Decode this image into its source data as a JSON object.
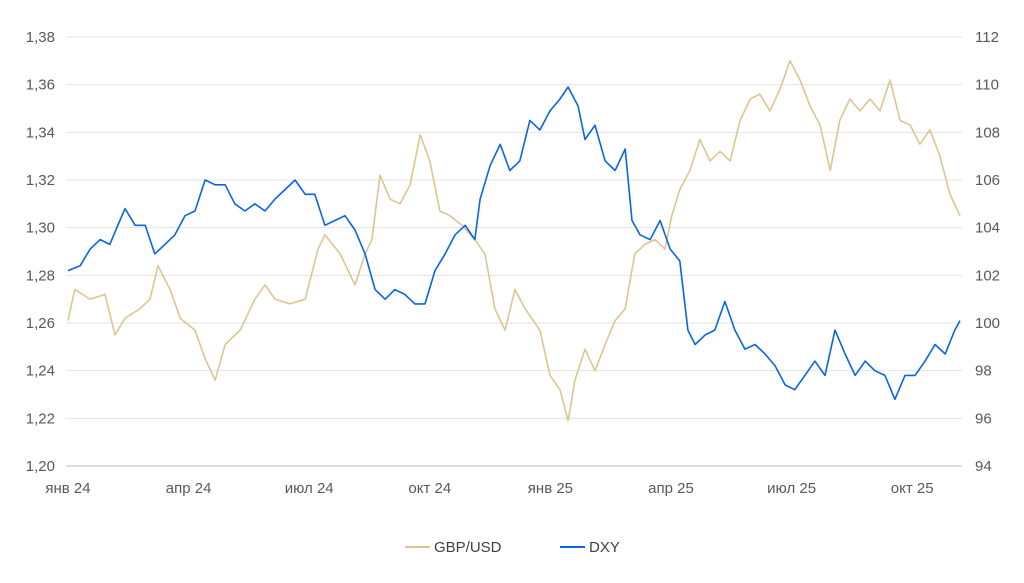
{
  "chart_data": {
    "type": "line",
    "title": "",
    "x_unit": "months since January 2024",
    "x_ticks": [
      {
        "t": 0,
        "label": "янв 24"
      },
      {
        "t": 3,
        "label": "апр 24"
      },
      {
        "t": 6,
        "label": "июл 24"
      },
      {
        "t": 9,
        "label": "окт 24"
      },
      {
        "t": 12,
        "label": "янв 25"
      },
      {
        "t": 15,
        "label": "апр 25"
      },
      {
        "t": 18,
        "label": "июл 25"
      },
      {
        "t": 21,
        "label": "окт 25"
      }
    ],
    "y_left": {
      "min": 1.2,
      "max": 1.38,
      "step": 0.02,
      "ticks": [
        "1,20",
        "1,22",
        "1,24",
        "1,26",
        "1,28",
        "1,30",
        "1,32",
        "1,34",
        "1,36",
        "1,38"
      ]
    },
    "y_right": {
      "min": 94,
      "max": 112,
      "step": 2,
      "ticks": [
        "94",
        "96",
        "98",
        "100",
        "102",
        "104",
        "106",
        "108",
        "110",
        "112"
      ]
    },
    "grid": true,
    "legend_position": "bottom",
    "series": [
      {
        "name": "GBP/USD",
        "axis": "left",
        "color": "#DCC592",
        "t": [
          0,
          0.17,
          0.55,
          0.92,
          1.17,
          1.42,
          1.79,
          2.04,
          2.24,
          2.54,
          2.79,
          3.16,
          3.41,
          3.66,
          3.91,
          4.28,
          4.65,
          4.9,
          5.15,
          5.52,
          5.9,
          6.22,
          6.39,
          6.77,
          7.14,
          7.39,
          7.56,
          7.76,
          8.01,
          8.26,
          8.51,
          8.76,
          9.0,
          9.25,
          9.5,
          9.8,
          10.12,
          10.37,
          10.62,
          10.87,
          11.12,
          11.37,
          11.74,
          11.99,
          12.24,
          12.44,
          12.61,
          12.86,
          13.11,
          13.36,
          13.61,
          13.86,
          14.1,
          14.35,
          14.6,
          14.85,
          15.02,
          15.22,
          15.47,
          15.72,
          15.97,
          16.22,
          16.47,
          16.72,
          16.97,
          17.21,
          17.46,
          17.71,
          17.96,
          18.21,
          18.46,
          18.71,
          18.96,
          19.2,
          19.45,
          19.7,
          19.95,
          20.2,
          20.45,
          20.7,
          20.95,
          21.19,
          21.44,
          21.69,
          21.94,
          22.19
        ],
        "values": [
          1.261,
          1.274,
          1.27,
          1.272,
          1.255,
          1.262,
          1.266,
          1.27,
          1.284,
          1.274,
          1.262,
          1.257,
          1.245,
          1.236,
          1.251,
          1.257,
          1.27,
          1.276,
          1.27,
          1.268,
          1.27,
          1.291,
          1.297,
          1.289,
          1.276,
          1.289,
          1.295,
          1.322,
          1.312,
          1.31,
          1.318,
          1.339,
          1.328,
          1.307,
          1.305,
          1.301,
          1.295,
          1.289,
          1.266,
          1.257,
          1.274,
          1.266,
          1.257,
          1.238,
          1.232,
          1.219,
          1.236,
          1.249,
          1.24,
          1.251,
          1.261,
          1.266,
          1.289,
          1.293,
          1.295,
          1.291,
          1.305,
          1.316,
          1.324,
          1.337,
          1.328,
          1.332,
          1.328,
          1.345,
          1.354,
          1.356,
          1.349,
          1.358,
          1.37,
          1.362,
          1.351,
          1.343,
          1.324,
          1.345,
          1.354,
          1.349,
          1.354,
          1.349,
          1.362,
          1.345,
          1.343,
          1.335,
          1.341,
          1.33,
          1.314,
          1.305
        ]
      },
      {
        "name": "DXY",
        "axis": "right",
        "color": "#0A64E6",
        "t": [
          0,
          0.3,
          0.55,
          0.8,
          1.04,
          1.24,
          1.42,
          1.67,
          1.92,
          2.16,
          2.41,
          2.66,
          2.91,
          3.16,
          3.41,
          3.66,
          3.91,
          4.15,
          4.4,
          4.65,
          4.9,
          5.15,
          5.4,
          5.65,
          5.9,
          6.14,
          6.39,
          6.64,
          6.89,
          7.14,
          7.39,
          7.64,
          7.89,
          8.13,
          8.38,
          8.63,
          8.88,
          9.13,
          9.38,
          9.63,
          9.88,
          10.12,
          10.25,
          10.5,
          10.75,
          10.99,
          11.24,
          11.49,
          11.74,
          11.99,
          12.24,
          12.44,
          12.69,
          12.86,
          13.11,
          13.36,
          13.61,
          13.86,
          14.03,
          14.23,
          14.48,
          14.73,
          14.98,
          15.22,
          15.42,
          15.6,
          15.85,
          16.09,
          16.34,
          16.59,
          16.84,
          17.09,
          17.34,
          17.59,
          17.84,
          18.08,
          18.33,
          18.58,
          18.83,
          19.08,
          19.33,
          19.58,
          19.83,
          20.07,
          20.32,
          20.57,
          20.82,
          21.07,
          21.32,
          21.57,
          21.82,
          22.06,
          22.19
        ],
        "values": [
          102.2,
          102.4,
          103.1,
          103.5,
          103.3,
          104.1,
          104.8,
          104.1,
          104.1,
          102.9,
          103.3,
          103.7,
          104.5,
          104.7,
          106.0,
          105.8,
          105.8,
          105.0,
          104.7,
          105.0,
          104.7,
          105.2,
          105.6,
          106.0,
          105.4,
          105.4,
          104.1,
          104.3,
          104.5,
          103.9,
          102.9,
          101.4,
          101.0,
          101.4,
          101.2,
          100.8,
          100.8,
          102.2,
          102.9,
          103.7,
          104.1,
          103.5,
          105.2,
          106.6,
          107.5,
          106.4,
          106.8,
          108.5,
          108.1,
          108.9,
          109.4,
          109.9,
          109.1,
          107.7,
          108.3,
          106.8,
          106.4,
          107.3,
          104.3,
          103.7,
          103.5,
          104.3,
          103.1,
          102.6,
          99.7,
          99.1,
          99.5,
          99.7,
          100.9,
          99.7,
          98.9,
          99.1,
          98.7,
          98.2,
          97.4,
          97.2,
          97.8,
          98.4,
          97.8,
          99.7,
          98.7,
          97.8,
          98.4,
          98.0,
          97.8,
          96.8,
          97.8,
          97.8,
          98.4,
          99.1,
          98.7,
          99.7,
          100.1
        ]
      }
    ]
  }
}
